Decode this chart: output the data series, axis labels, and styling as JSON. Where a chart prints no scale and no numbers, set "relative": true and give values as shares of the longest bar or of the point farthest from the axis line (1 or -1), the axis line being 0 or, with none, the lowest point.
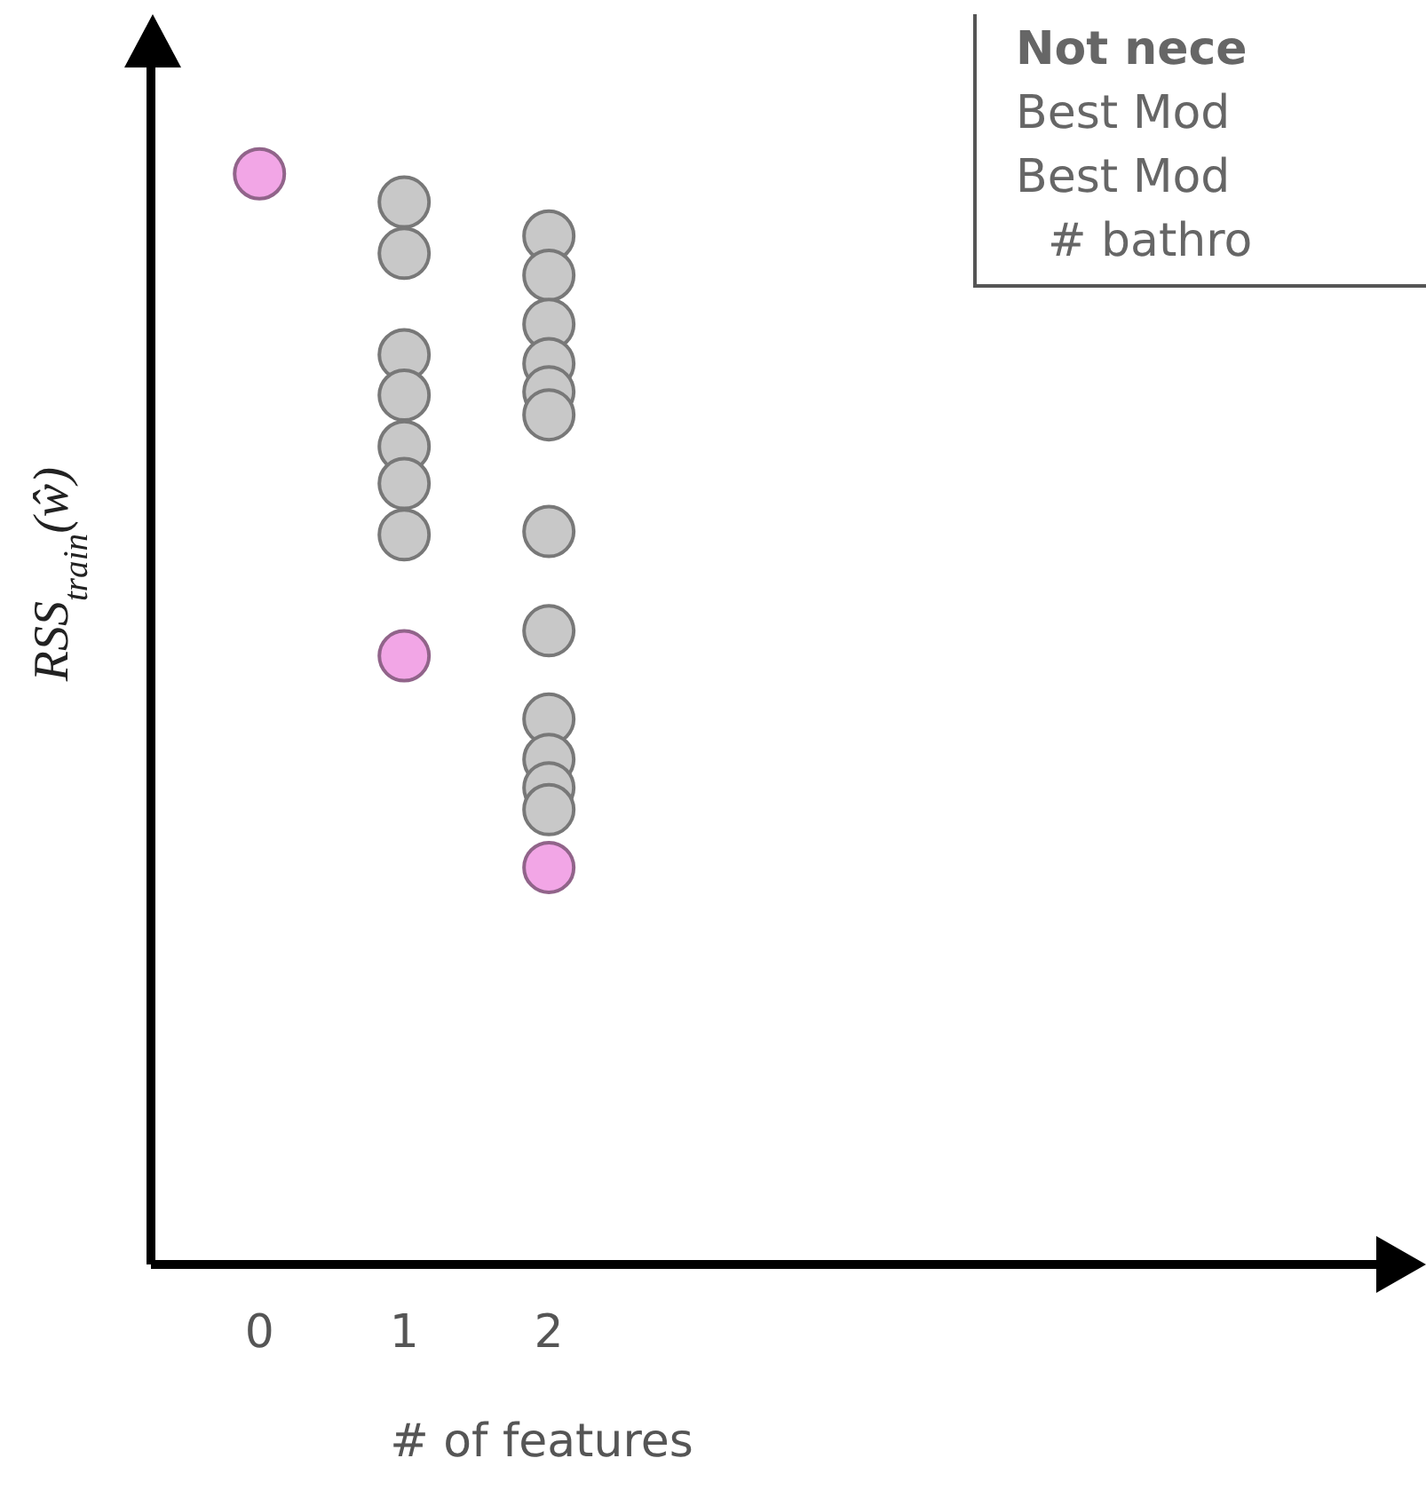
{
  "chart_data": {
    "type": "scatter",
    "xlabel": "# of features",
    "ylabel": "RSS$_{train}$(ŵ)",
    "relative": true,
    "xlim": [
      -0.75,
      8
    ],
    "xticks": [
      0,
      1,
      2
    ],
    "marker": "circle",
    "annotations": [
      "Not nece",
      "Best Mod",
      "Best Mod",
      "# bathro"
    ],
    "series": [
      {
        "color": "#c8c8c8",
        "x": [
          1,
          1,
          1,
          1,
          1,
          1,
          1,
          2,
          2,
          2,
          2,
          2,
          2,
          2,
          2,
          2,
          2,
          2,
          2
        ],
        "values": [
          0.974,
          0.927,
          0.834,
          0.797,
          0.75,
          0.716,
          0.669,
          0.943,
          0.907,
          0.862,
          0.826,
          0.8,
          0.779,
          0.672,
          0.581,
          0.5,
          0.463,
          0.437,
          0.417
        ]
      },
      {
        "color": "#f2a6e6",
        "x": [
          0,
          1,
          2
        ],
        "values": [
          1,
          0.558,
          0.364
        ]
      }
    ]
  }
}
